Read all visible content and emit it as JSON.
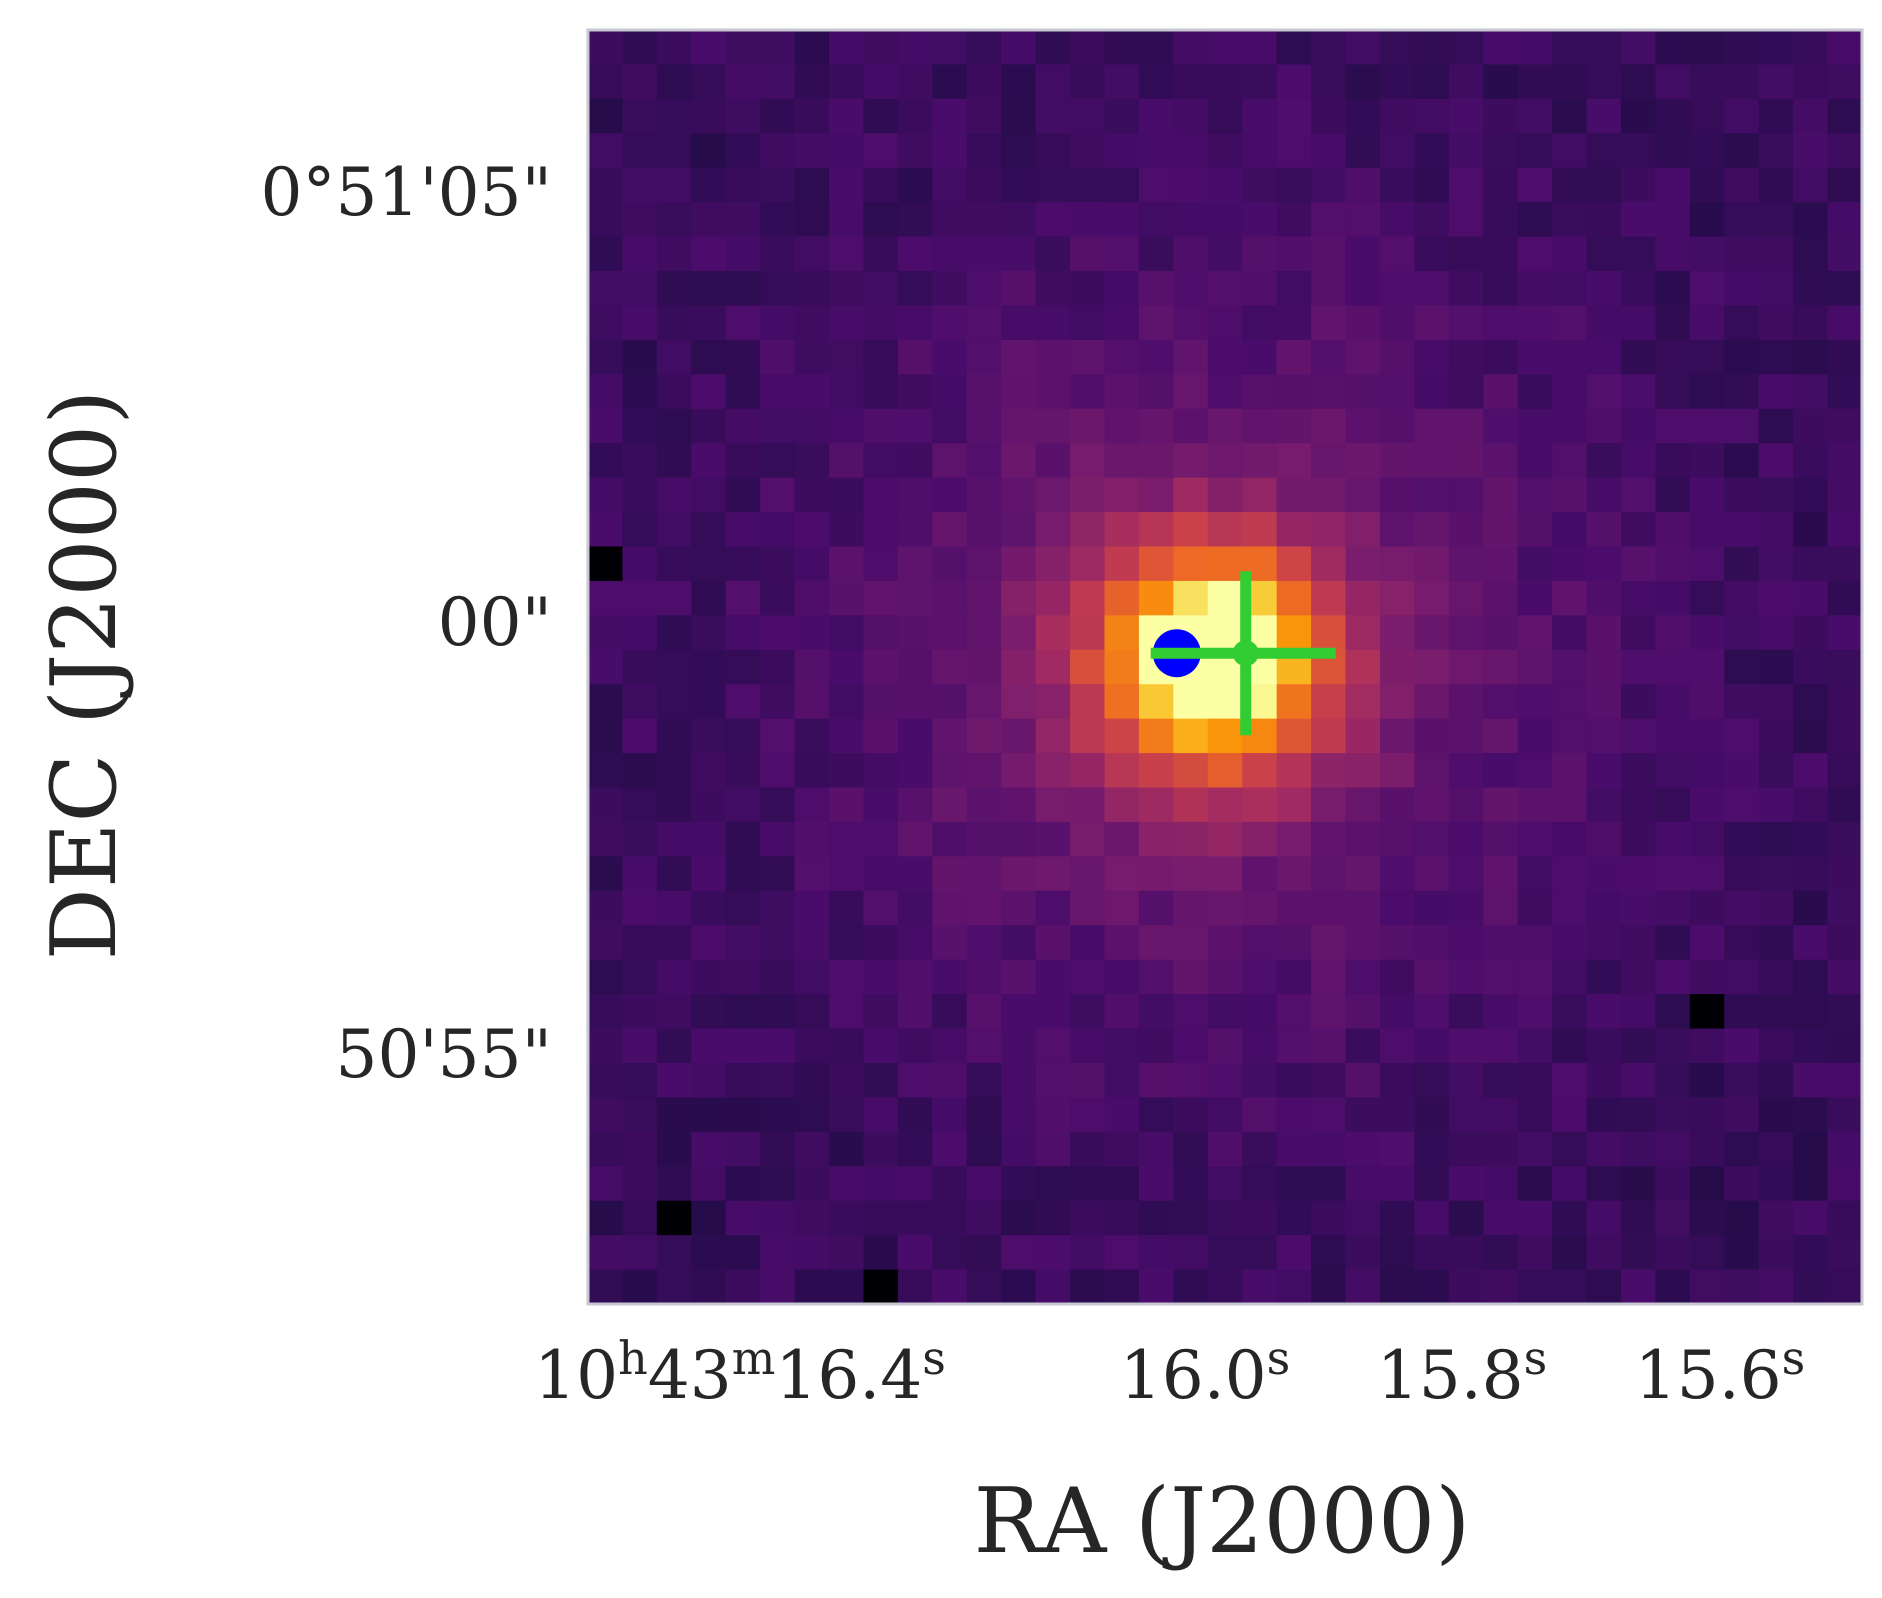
{
  "chart_data": {
    "type": "heatmap",
    "title": "",
    "xlabel": "RA (J2000)",
    "ylabel": "DEC (J2000)",
    "colormap": "inferno",
    "grid": false,
    "frame_color": "#c8c8d2",
    "xticks": [
      {
        "h": "10",
        "hs": "h",
        "m": "43",
        "ms": "m",
        "s": "16.4",
        "ss": "s"
      },
      {
        "s": "16.0",
        "ss": "s"
      },
      {
        "s": "15.8",
        "ss": "s"
      },
      {
        "s": "15.6",
        "ss": "s"
      }
    ],
    "yticks": [
      {
        "label": "0°51'05\""
      },
      {
        "label": "00\""
      },
      {
        "label": "50'55\""
      }
    ],
    "image": {
      "cols": 37,
      "rows": 37,
      "peak": {
        "col": 17.6,
        "row": 17.8
      },
      "background_level": 0.2,
      "dark_pixels": [
        [
          0,
          15
        ],
        [
          8,
          36
        ],
        [
          32,
          28
        ],
        [
          2,
          34
        ]
      ],
      "pixels_note_omitted": true
    },
    "markers": [
      {
        "kind": "filled-circle",
        "color": "#0000ff",
        "col": 17.1,
        "row": 18.1
      },
      {
        "kind": "crosshair",
        "color": "#32cd32",
        "col": 19.1,
        "row": 18.1
      }
    ]
  }
}
